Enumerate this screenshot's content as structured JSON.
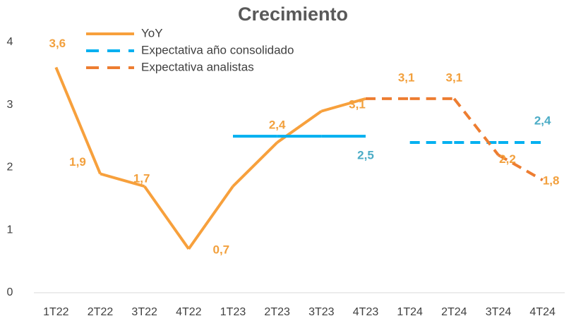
{
  "chart_data": {
    "type": "line",
    "title": "Crecimiento",
    "categories": [
      "1T22",
      "2T22",
      "3T22",
      "4T22",
      "1T23",
      "2T23",
      "3T23",
      "4T23",
      "1T24",
      "2T24",
      "3T24",
      "4T24"
    ],
    "ylim": [
      0,
      4
    ],
    "yticks": [
      0,
      1,
      2,
      3,
      4
    ],
    "grid": false,
    "legend": "top-left",
    "series": [
      {
        "name": "YoY",
        "color": "#f7a03c",
        "label_color": "#f2a03d",
        "values": [
          3.6,
          1.9,
          1.7,
          0.7,
          1.7,
          2.4,
          2.9,
          3.1,
          null,
          null,
          null,
          null
        ],
        "value_labels": [
          "3,6",
          "1,9",
          "1,7",
          "0,7",
          null,
          "2,4",
          null,
          "3,1",
          null,
          null,
          null,
          null
        ],
        "styles": [
          "solid",
          "solid",
          "solid",
          "solid",
          "solid",
          "solid",
          "solid",
          null,
          null,
          null,
          null,
          null
        ]
      },
      {
        "name": "Expectativa año consolidado",
        "color": "#00b0f0",
        "label_color": "#4bacc6",
        "legend_style": "dash",
        "values": [
          null,
          null,
          null,
          null,
          2.5,
          2.5,
          2.5,
          2.5,
          2.4,
          2.4,
          2.4,
          2.4
        ],
        "value_labels": [
          null,
          null,
          null,
          null,
          null,
          null,
          null,
          "2,5",
          null,
          null,
          null,
          "2,4"
        ],
        "styles": [
          null,
          null,
          null,
          null,
          "solid",
          "solid",
          "solid",
          null,
          "dash",
          "dash",
          "dash",
          null
        ]
      },
      {
        "name": "Expectativa analistas",
        "color": "#ed7d31",
        "label_color": "#f2a03d",
        "legend_style": "dash",
        "values": [
          null,
          null,
          null,
          null,
          null,
          null,
          null,
          3.1,
          3.1,
          3.1,
          2.2,
          1.8
        ],
        "value_labels": [
          null,
          null,
          null,
          null,
          null,
          null,
          null,
          null,
          "3,1",
          "3,1",
          "2,2",
          "1,8"
        ],
        "styles": [
          null,
          null,
          null,
          null,
          null,
          null,
          null,
          "dash",
          "dash",
          "dash",
          "dash",
          null
        ]
      }
    ]
  }
}
